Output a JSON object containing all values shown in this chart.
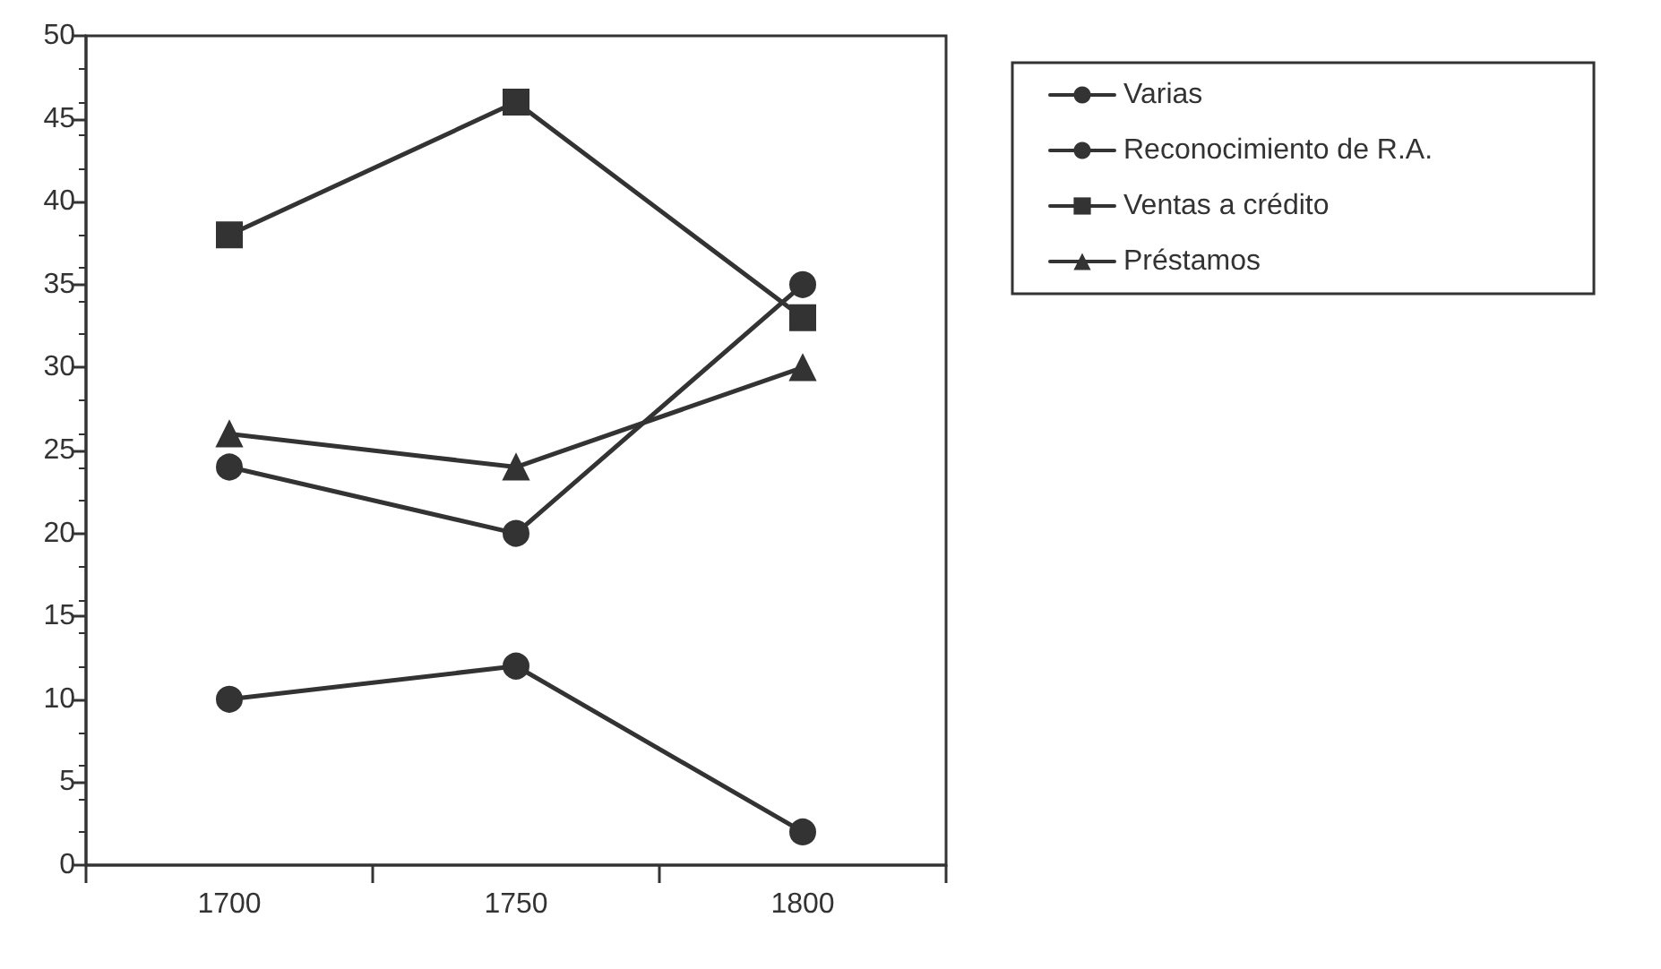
{
  "chart_data": {
    "type": "line",
    "categories": [
      "1700",
      "1750",
      "1800"
    ],
    "series": [
      {
        "name": "Varias",
        "color": "#333333",
        "marker": "circle",
        "values": [
          10,
          12,
          2
        ]
      },
      {
        "name": "Reconocimiento de R.A.",
        "color": "#333333",
        "marker": "circle",
        "values": [
          24,
          20,
          35
        ]
      },
      {
        "name": "Ventas a crédito",
        "color": "#333333",
        "marker": "square",
        "values": [
          38,
          46,
          33
        ]
      },
      {
        "name": "Préstamos",
        "color": "#333333",
        "marker": "triangle",
        "values": [
          26,
          24,
          30
        ]
      }
    ],
    "ylim": [
      0,
      50
    ],
    "yticks": [
      0,
      5,
      10,
      15,
      20,
      25,
      30,
      35,
      40,
      45,
      50
    ],
    "grid": false,
    "legend": "top right",
    "line_style": "solid"
  }
}
